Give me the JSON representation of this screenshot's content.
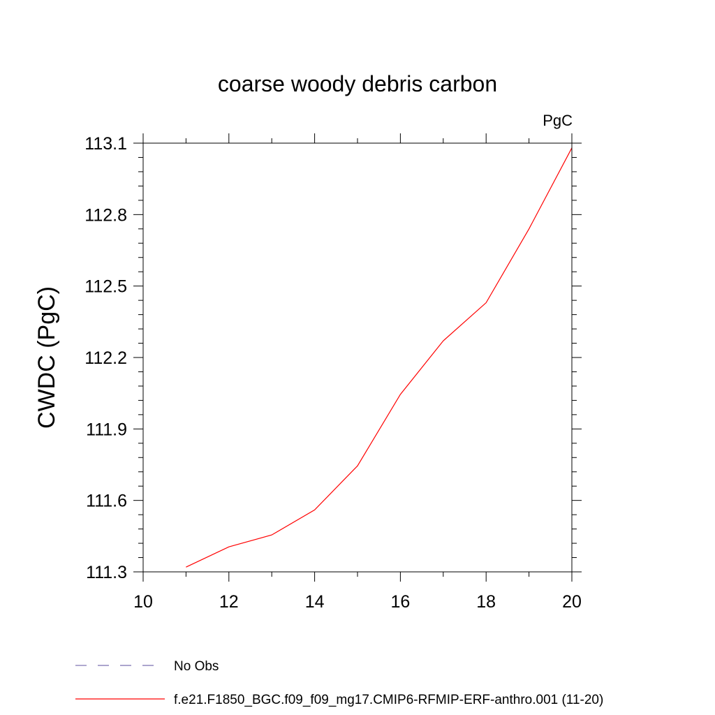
{
  "chart_data": {
    "type": "line",
    "title": "coarse woody debris carbon",
    "units": "PgC",
    "ylabel": "CWDC  (PgC)",
    "xlabel": "",
    "xlim": [
      10,
      20
    ],
    "ylim": [
      111.3,
      113.1
    ],
    "x_ticks": [
      10,
      12,
      14,
      16,
      18,
      20
    ],
    "x_tick_labels": [
      "10",
      "12",
      "14",
      "16",
      "18",
      "20"
    ],
    "y_ticks": [
      111.3,
      111.6,
      111.9,
      112.2,
      112.5,
      112.8,
      113.1
    ],
    "y_tick_labels": [
      "111.3",
      "111.6",
      "111.9",
      "112.2",
      "112.5",
      "112.8",
      "113.1"
    ],
    "grid": false,
    "legend_position": "bottom",
    "series": [
      {
        "name": "f.e21.F1850_BGC.f09_f09_mg17.CMIP6-RFMIP-ERF-anthro.001 (11-20)",
        "color": "#ff0000",
        "style": "solid",
        "x": [
          11,
          12,
          13,
          14,
          15,
          16,
          17,
          18,
          19,
          20
        ],
        "values": [
          111.32,
          111.405,
          111.455,
          111.56,
          111.745,
          112.045,
          112.27,
          112.43,
          112.74,
          113.08
        ]
      }
    ],
    "legend": [
      {
        "label": "No Obs",
        "color": "#7b6fb0",
        "style": "dashed"
      },
      {
        "label": "f.e21.F1850_BGC.f09_f09_mg17.CMIP6-RFMIP-ERF-anthro.001 (11-20)",
        "color": "#ff0000",
        "style": "solid"
      }
    ]
  }
}
